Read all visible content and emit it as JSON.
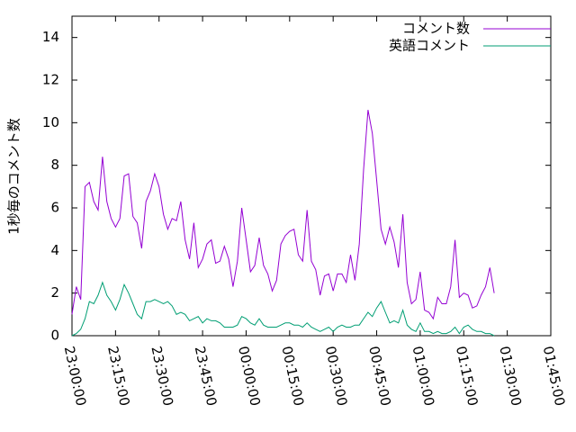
{
  "chart_data": {
    "type": "line",
    "ylabel": "1秒毎のコメント数",
    "x": [
      "23:00:00",
      "23:01:30",
      "23:03:00",
      "23:04:30",
      "23:06:00",
      "23:07:30",
      "23:09:00",
      "23:10:30",
      "23:12:00",
      "23:13:30",
      "23:15:00",
      "23:16:30",
      "23:18:00",
      "23:19:30",
      "23:21:00",
      "23:22:30",
      "23:24:00",
      "23:25:30",
      "23:27:00",
      "23:28:30",
      "23:30:00",
      "23:31:30",
      "23:33:00",
      "23:34:30",
      "23:36:00",
      "23:37:30",
      "23:39:00",
      "23:40:30",
      "23:42:00",
      "23:43:30",
      "23:45:00",
      "23:46:30",
      "23:48:00",
      "23:49:30",
      "23:51:00",
      "23:52:30",
      "23:54:00",
      "23:55:30",
      "23:57:00",
      "23:58:30",
      "00:00:00",
      "00:01:30",
      "00:03:00",
      "00:04:30",
      "00:06:00",
      "00:07:30",
      "00:09:00",
      "00:10:30",
      "00:12:00",
      "00:13:30",
      "00:15:00",
      "00:16:30",
      "00:18:00",
      "00:19:30",
      "00:21:00",
      "00:22:30",
      "00:24:00",
      "00:25:30",
      "00:27:00",
      "00:28:30",
      "00:30:00",
      "00:31:30",
      "00:33:00",
      "00:34:30",
      "00:36:00",
      "00:37:30",
      "00:39:00",
      "00:40:30",
      "00:42:00",
      "00:43:30",
      "00:45:00",
      "00:46:30",
      "00:48:00",
      "00:49:30",
      "00:51:00",
      "00:52:30",
      "00:54:00",
      "00:55:30",
      "00:57:00",
      "00:58:30",
      "01:00:00",
      "01:01:30",
      "01:03:00",
      "01:04:30",
      "01:06:00",
      "01:07:30",
      "01:09:00",
      "01:10:30",
      "01:12:00",
      "01:13:30",
      "01:15:00",
      "01:16:30",
      "01:18:00",
      "01:19:30",
      "01:21:00",
      "01:22:30",
      "01:24:00",
      "01:25:30"
    ],
    "series": [
      {
        "name": "コメント数",
        "color": "#9400d3",
        "values": [
          1.0,
          2.3,
          1.7,
          7.0,
          7.2,
          6.3,
          5.9,
          8.4,
          6.3,
          5.5,
          5.1,
          5.5,
          7.5,
          7.6,
          5.6,
          5.3,
          4.1,
          6.3,
          6.8,
          7.6,
          7.0,
          5.7,
          5.0,
          5.5,
          5.4,
          6.3,
          4.5,
          3.6,
          5.3,
          3.2,
          3.6,
          4.3,
          4.5,
          3.4,
          3.5,
          4.2,
          3.6,
          2.3,
          3.5,
          6.0,
          4.5,
          3.0,
          3.3,
          4.6,
          3.3,
          2.9,
          2.1,
          2.6,
          4.3,
          4.7,
          4.9,
          5.0,
          3.8,
          3.5,
          5.9,
          3.5,
          3.1,
          1.9,
          2.8,
          2.9,
          2.1,
          2.9,
          2.9,
          2.5,
          3.8,
          2.6,
          4.3,
          7.8,
          10.6,
          9.5,
          7.3,
          5.0,
          4.3,
          5.1,
          4.4,
          3.2,
          5.7,
          2.5,
          1.5,
          1.7,
          3.0,
          1.2,
          1.1,
          0.8,
          1.8,
          1.5,
          1.5,
          2.3,
          4.5,
          1.8,
          2.0,
          1.9,
          1.3,
          1.4,
          1.9,
          2.3,
          3.2,
          2.0
        ]
      },
      {
        "name": "英語コメント",
        "color": "#009e73",
        "values": [
          0.0,
          0.1,
          0.3,
          0.8,
          1.6,
          1.5,
          1.9,
          2.5,
          1.9,
          1.6,
          1.2,
          1.7,
          2.4,
          2.0,
          1.5,
          1.0,
          0.8,
          1.6,
          1.6,
          1.7,
          1.6,
          1.5,
          1.6,
          1.4,
          1.0,
          1.1,
          1.0,
          0.7,
          0.8,
          0.9,
          0.6,
          0.8,
          0.7,
          0.7,
          0.6,
          0.4,
          0.4,
          0.4,
          0.5,
          0.9,
          0.8,
          0.6,
          0.5,
          0.8,
          0.5,
          0.4,
          0.4,
          0.4,
          0.5,
          0.6,
          0.6,
          0.5,
          0.5,
          0.4,
          0.6,
          0.4,
          0.3,
          0.2,
          0.3,
          0.4,
          0.2,
          0.4,
          0.5,
          0.4,
          0.4,
          0.5,
          0.5,
          0.8,
          1.1,
          0.9,
          1.3,
          1.6,
          1.1,
          0.6,
          0.7,
          0.6,
          1.2,
          0.5,
          0.3,
          0.2,
          0.6,
          0.2,
          0.2,
          0.1,
          0.2,
          0.1,
          0.1,
          0.2,
          0.4,
          0.1,
          0.4,
          0.5,
          0.3,
          0.2,
          0.2,
          0.1,
          0.1,
          0.0
        ]
      }
    ],
    "xlim": [
      "23:00:00",
      "01:45:00"
    ],
    "xticks": [
      "23:00:00",
      "23:15:00",
      "23:30:00",
      "23:45:00",
      "00:00:00",
      "00:15:00",
      "00:30:00",
      "00:45:00",
      "01:00:00",
      "01:15:00",
      "01:30:00",
      "01:45:00"
    ],
    "ylim": [
      0,
      15
    ],
    "yticks": [
      0,
      2,
      4,
      6,
      8,
      10,
      12,
      14
    ],
    "grid": false,
    "legend": "top-right"
  }
}
